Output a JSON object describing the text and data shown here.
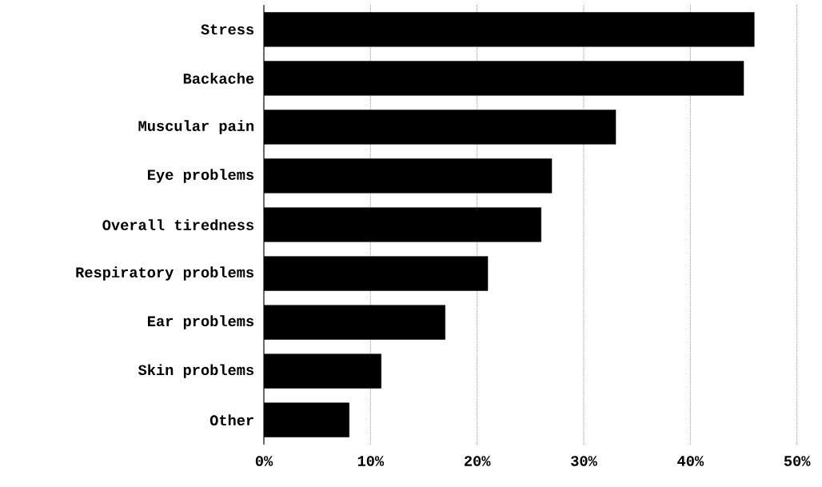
{
  "chart_data": {
    "type": "bar",
    "orientation": "horizontal",
    "categories": [
      "Stress",
      "Backache",
      "Muscular pain",
      "Eye problems",
      "Overall tiredness",
      "Respiratory problems",
      "Ear problems",
      "Skin problems",
      "Other"
    ],
    "values": [
      46,
      45,
      33,
      27,
      26,
      21,
      17,
      11,
      8
    ],
    "color": "#000000",
    "xlim": [
      0,
      50
    ],
    "xticks": [
      {
        "value": 0,
        "label": "0%"
      },
      {
        "value": 10,
        "label": "10%"
      },
      {
        "value": 20,
        "label": "20%"
      },
      {
        "value": 30,
        "label": "30%"
      },
      {
        "value": 40,
        "label": "40%"
      },
      {
        "value": 50,
        "label": "50%"
      }
    ],
    "grid": "x"
  }
}
